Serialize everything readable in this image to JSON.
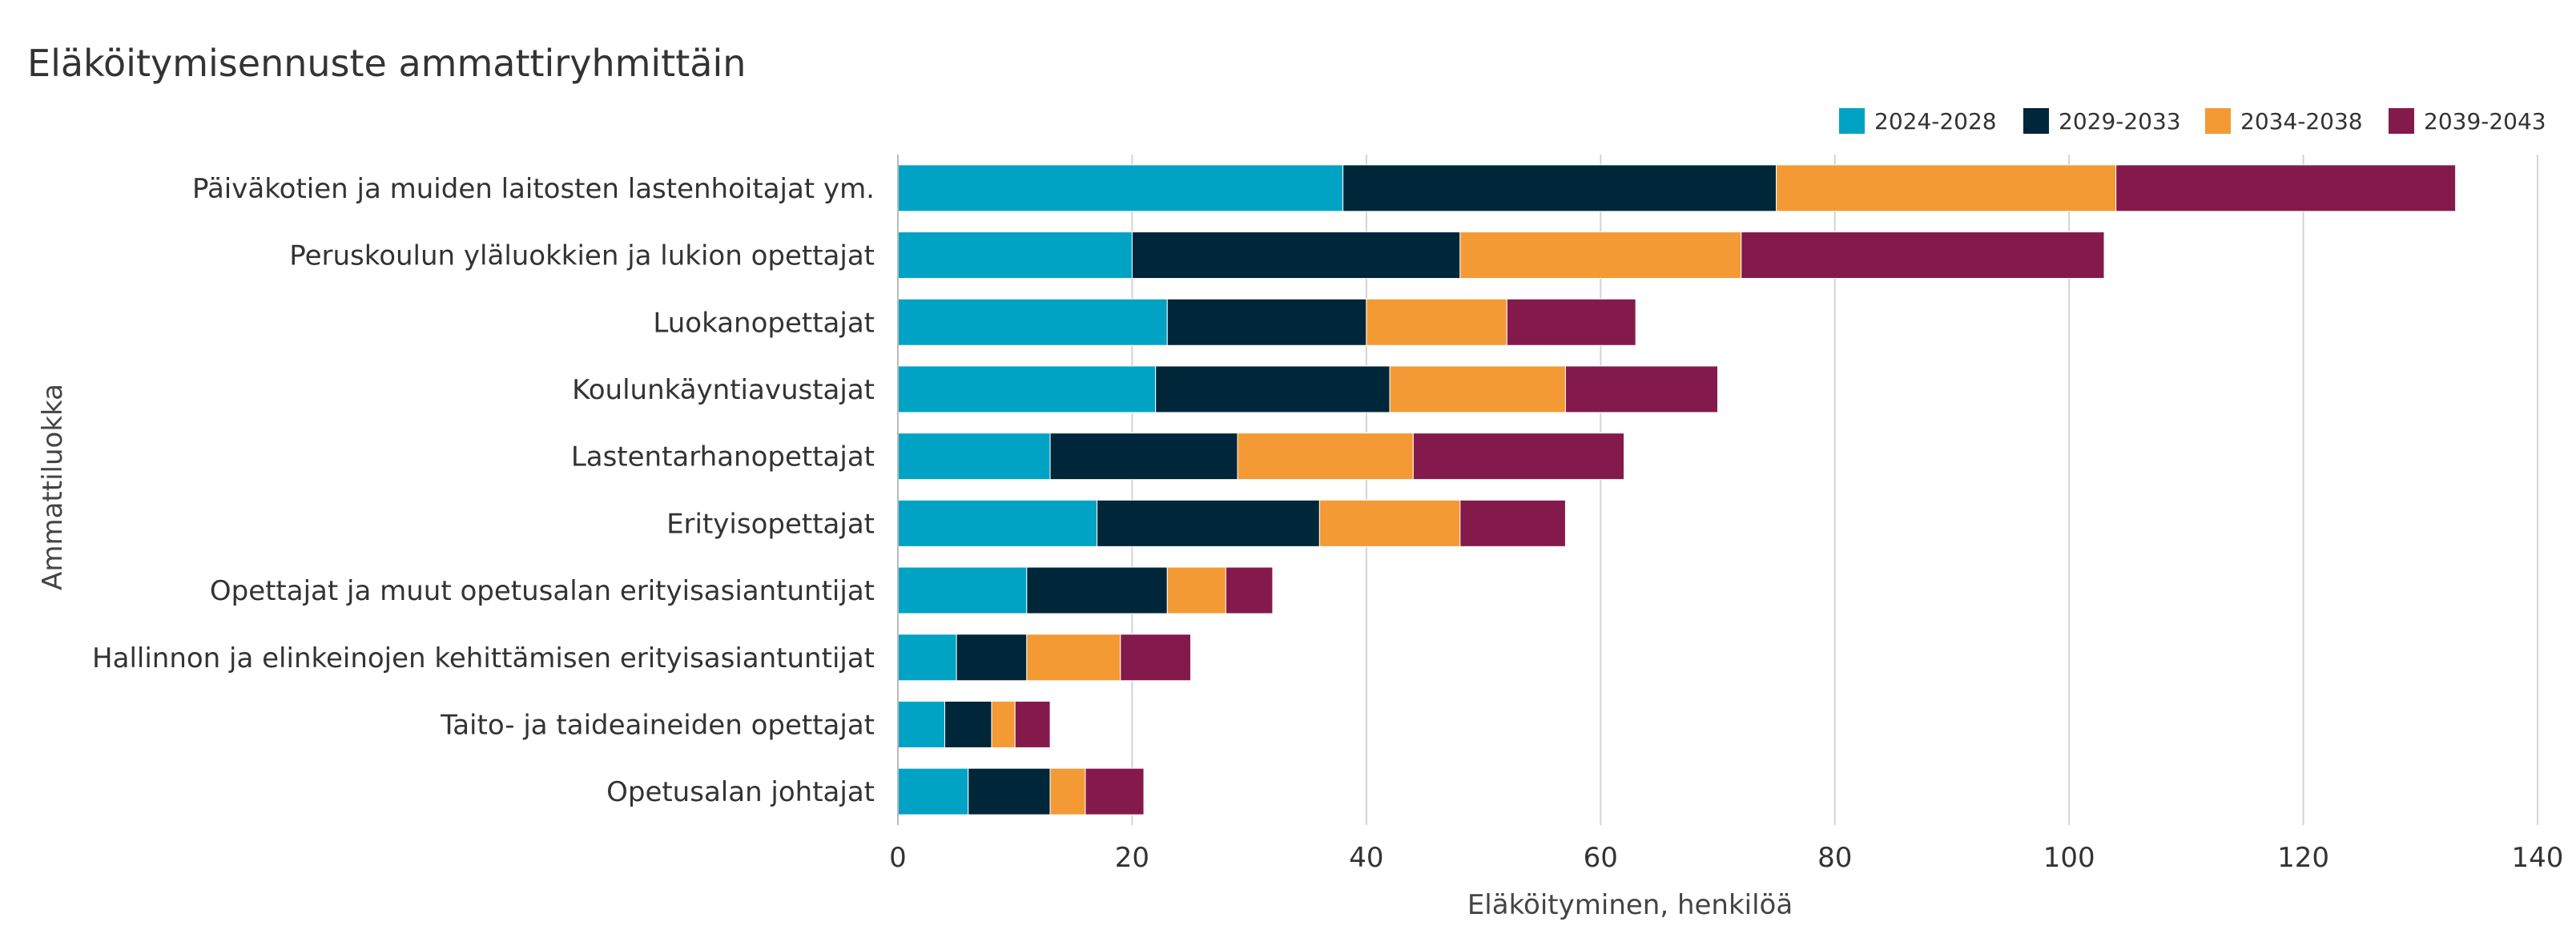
{
  "chart_data": {
    "type": "bar",
    "orientation": "horizontal",
    "stacked": true,
    "title": "Eläköitymisennuste ammattiryhmittäin",
    "xlabel": "Eläköityminen, henkilöä",
    "ylabel": "Ammattiluokka",
    "xlim": [
      0,
      140
    ],
    "xticks": [
      0,
      20,
      40,
      60,
      80,
      100,
      120,
      140
    ],
    "grid": true,
    "legend_position": "top-right",
    "categories": [
      "Päiväkotien ja muiden laitosten lastenhoitajat ym.",
      "Peruskoulun yläluokkien ja lukion opettajat",
      "Luokanopettajat",
      "Koulunkäyntiavustajat",
      "Lastentarhanopettajat",
      "Erityisopettajat",
      "Opettajat ja muut opetusalan erityisasiantuntijat",
      "Hallinnon ja elinkeinojen kehittämisen erityisasiantuntijat",
      "Taito- ja taideaineiden opettajat",
      "Opetusalan johtajat"
    ],
    "series": [
      {
        "name": "2024-2028",
        "color": "#00a3c4",
        "values": [
          38,
          20,
          23,
          22,
          13,
          17,
          11,
          5,
          4,
          6
        ]
      },
      {
        "name": "2029-2033",
        "color": "#00263a",
        "values": [
          37,
          28,
          17,
          20,
          16,
          19,
          12,
          6,
          4,
          7
        ]
      },
      {
        "name": "2034-2038",
        "color": "#f39a34",
        "values": [
          29,
          24,
          12,
          15,
          15,
          12,
          5,
          8,
          2,
          3
        ]
      },
      {
        "name": "2039-2043",
        "color": "#841a4c",
        "values": [
          29,
          31,
          11,
          13,
          18,
          9,
          4,
          6,
          3,
          5
        ]
      }
    ]
  }
}
